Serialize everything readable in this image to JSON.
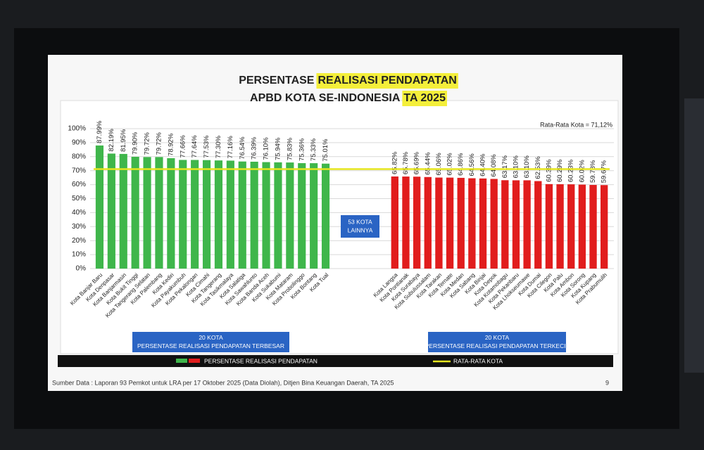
{
  "chart_data": {
    "type": "bar",
    "title_lines": [
      [
        "PERSENTASE",
        "REALISASI PENDAPATAN"
      ],
      [
        "APBD KOTA SE-INDONESIA",
        "TA 2025"
      ]
    ],
    "ylim": [
      0,
      100
    ],
    "yticks": [
      {
        "value": 0,
        "label": "0%"
      },
      {
        "value": 10,
        "label": "10%"
      },
      {
        "value": 20,
        "label": "20%"
      },
      {
        "value": 30,
        "label": "30%"
      },
      {
        "value": 40,
        "label": "40%"
      },
      {
        "value": 50,
        "label": "50%"
      },
      {
        "value": 60,
        "label": "60%"
      },
      {
        "value": 70,
        "label": "70%"
      },
      {
        "value": 80,
        "label": "80%"
      },
      {
        "value": 90,
        "label": "90%"
      },
      {
        "value": 100,
        "label": "100%"
      }
    ],
    "grid": true,
    "groups": [
      {
        "color": "#3fb64b",
        "box_lines": [
          "20 KOTA",
          "PERSENTASE REALISASI PENDAPATAN TERBESAR"
        ],
        "categories": [
          "Kota Banjar Baru",
          "Kota Denpasar",
          "Kota Banjarmasin",
          "Kota Bukit Tinggi",
          "Kota Tangerang Selatan",
          "Kota Palembang",
          "Kota Kediri",
          "Kota Payakumbuh",
          "Kota Pekalongan",
          "Kota Cimahi",
          "Kota Tangerang",
          "Kota Tasikmalaya",
          "Kota Salatiga",
          "Kota Sawahlunto",
          "Kota Banda Aceh",
          "Kota Sukabumi",
          "Kota Mataram",
          "Kota Probolinggo",
          "Kota Bontang",
          "Kota Tual"
        ],
        "values": [
          87.99,
          82.19,
          81.95,
          79.9,
          79.72,
          79.72,
          78.92,
          77.66,
          77.64,
          77.53,
          77.3,
          77.16,
          76.54,
          76.39,
          76.1,
          75.94,
          75.83,
          75.36,
          75.33,
          75.01
        ],
        "value_labels": [
          "87.99%",
          "82.19%",
          "81.95%",
          "79.90%",
          "79.72%",
          "79.72%",
          "78.92%",
          "77.66%",
          "77.64%",
          "77.53%",
          "77.30%",
          "77.16%",
          "76.54%",
          "76.39%",
          "76.10%",
          "75.94%",
          "75.83%",
          "75.36%",
          "75.33%",
          "75.01%"
        ]
      },
      {
        "color": "#e11d1d",
        "box_lines": [
          "20 KOTA",
          "PERSENTASE REALISASI PENDAPATAN TERKECIL"
        ],
        "categories": [
          "Kota Langsa",
          "Kota Pontianak",
          "Kota Surabaya",
          "Kota Subulussalam",
          "Kota Tarakan",
          "Kota Ternate",
          "Kota Medan",
          "Kota Sabang",
          "Kota Binjai",
          "Kota Depok",
          "Kota Kotamobagu",
          "Kota Pekanbaru",
          "Kota Lhokseumawe",
          "Kota Dumai",
          "Kota Cilegon",
          "Kota Palu",
          "Kota Ambon",
          "Kota Sorong",
          "Kota Kupang",
          "Kota Prabumulih"
        ],
        "values": [
          65.82,
          65.78,
          65.69,
          65.44,
          65.06,
          65.02,
          64.86,
          64.56,
          64.4,
          64.08,
          63.17,
          63.1,
          63.1,
          62.53,
          60.39,
          60.29,
          60.23,
          60.02,
          59.78,
          59.67
        ],
        "value_labels": [
          "65.82%",
          "65.78%",
          "65.69%",
          "65.44%",
          "65.06%",
          "65.02%",
          "64.86%",
          "64.56%",
          "64.40%",
          "64.08%",
          "63.17%",
          "63.10%",
          "63.10%",
          "62.53%",
          "60.39%",
          "60.29%",
          "60.23%",
          "60.02%",
          "59.78%",
          "59.67%"
        ]
      }
    ],
    "middle_box": [
      "53 KOTA",
      "LAINNYA"
    ],
    "average": {
      "value": 71.12,
      "label": "Rata-Rata Kota = 71,12%",
      "color": "#e6e61e"
    },
    "legend": {
      "bars": "PERSENTASE REALISASI PENDAPATAN",
      "line": "RATA-RATA KOTA"
    },
    "source": "Sumber Data : Laporan 93 Pemkot untuk LRA per 17 Oktober 2025 (Data Diolah), Ditjen Bina Keuangan Daerah, TA 2025",
    "page_number": "9"
  }
}
